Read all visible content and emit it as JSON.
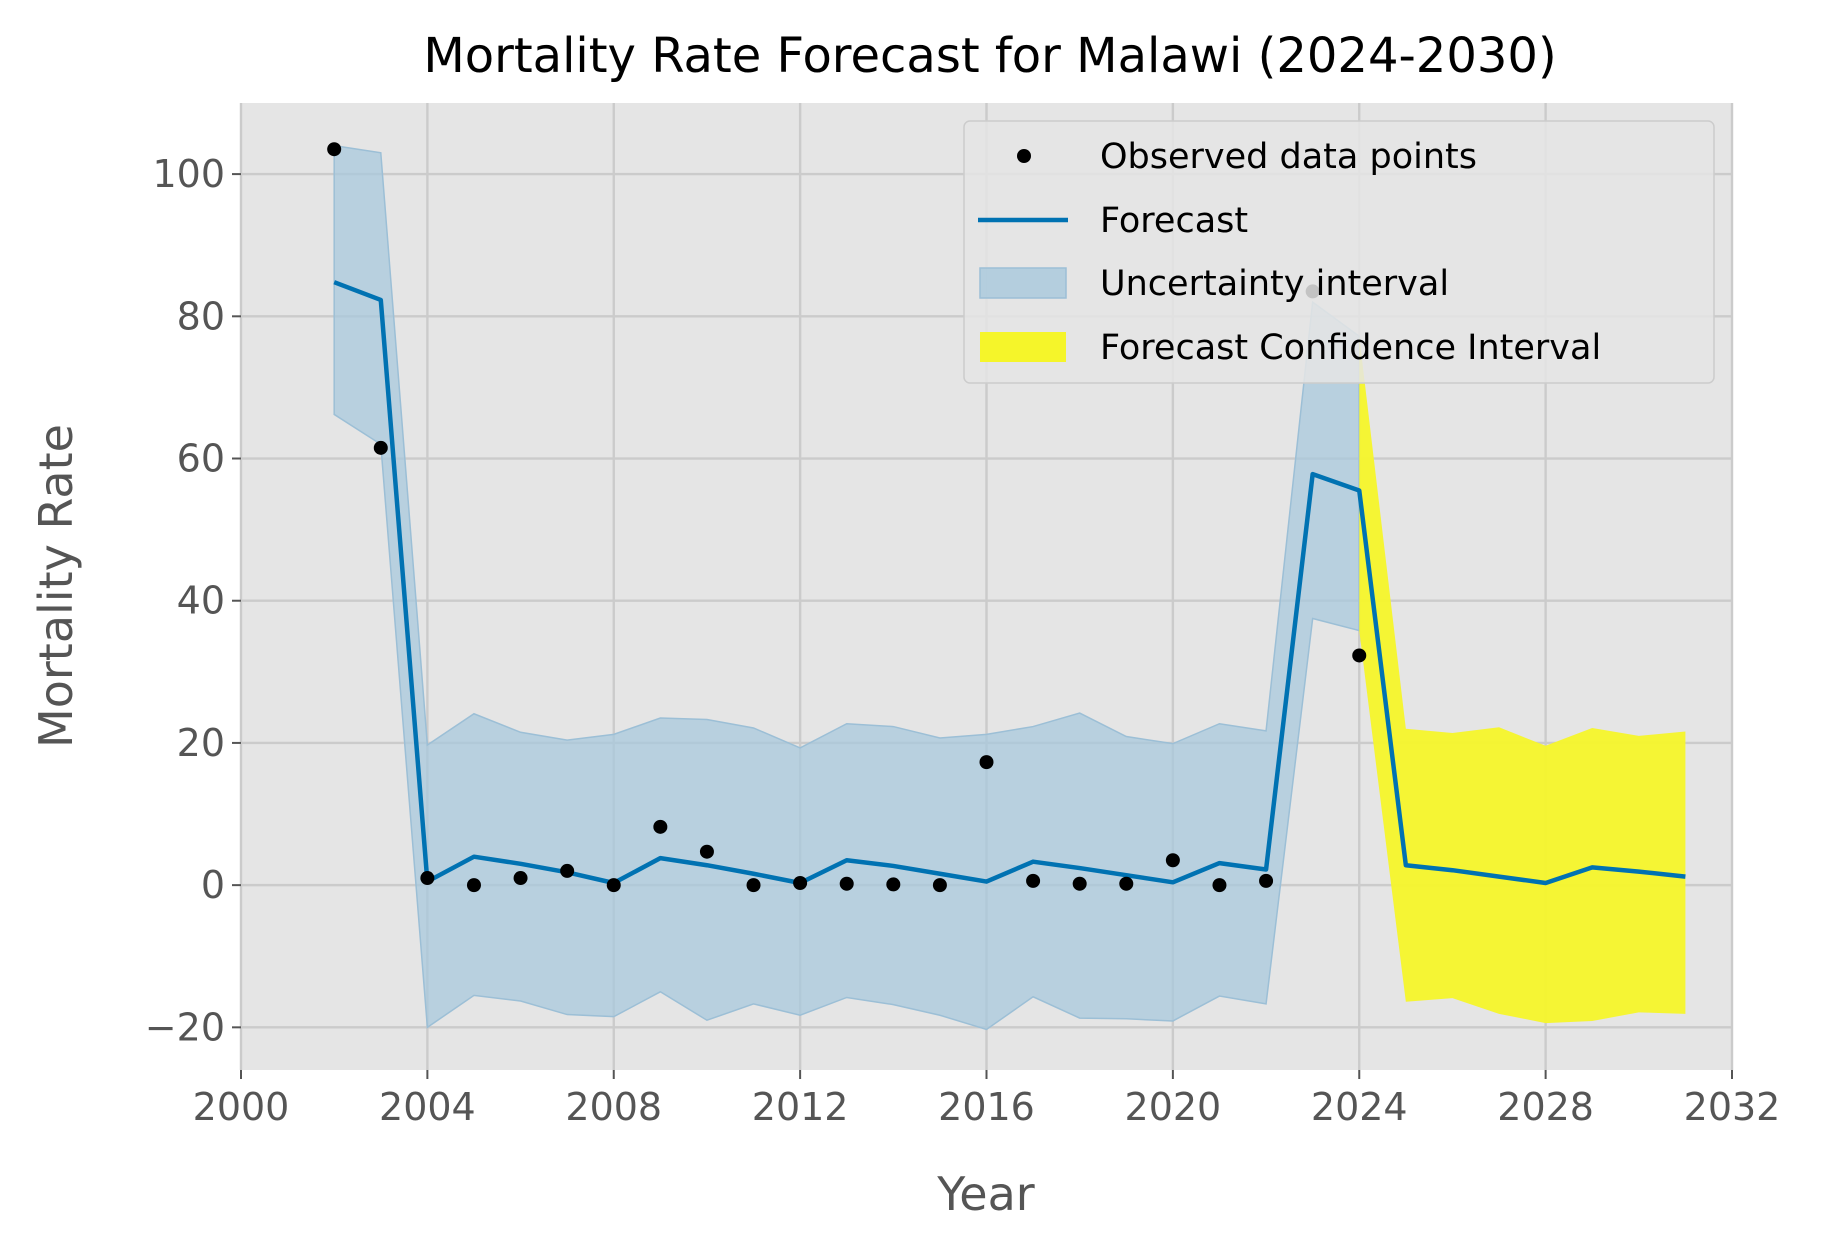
{
  "chart_data": {
    "type": "line",
    "title": "Mortality Rate Forecast for Malawi (2024-2030)",
    "xlabel": "Year",
    "ylabel": "Mortality Rate",
    "xlim": [
      2000,
      2032
    ],
    "ylim": [
      -26,
      110
    ],
    "grid": true,
    "legend_position": "top-right",
    "x_ticks": [
      2000,
      2004,
      2008,
      2012,
      2016,
      2020,
      2024,
      2028,
      2032
    ],
    "x_tick_labels": [
      "2000",
      "2004",
      "2008",
      "2012",
      "2016",
      "2020",
      "2024",
      "2028",
      "2032"
    ],
    "y_ticks": [
      -20,
      0,
      20,
      40,
      60,
      80,
      100
    ],
    "y_tick_labels": [
      "−20",
      "0",
      "20",
      "40",
      "60",
      "80",
      "100"
    ],
    "colors": {
      "plot_background": "#e5e5e5",
      "grid": "#cbcbcb",
      "forecast_line": "#0072b2",
      "uncertainty_fill": "#a8c8dc",
      "confidence_fill": "#f5f52a",
      "observed": "#000000"
    },
    "legend": [
      {
        "key": "observed",
        "label": "Observed data points"
      },
      {
        "key": "forecast",
        "label": "Forecast"
      },
      {
        "key": "uncertainty",
        "label": "Uncertainty interval"
      },
      {
        "key": "confidence",
        "label": "Forecast Confidence Interval"
      }
    ],
    "observed": {
      "x": [
        2002,
        2003,
        2004,
        2005,
        2006,
        2007,
        2008,
        2009,
        2010,
        2011,
        2012,
        2013,
        2014,
        2015,
        2016,
        2017,
        2018,
        2019,
        2020,
        2021,
        2022,
        2023,
        2024
      ],
      "y": [
        103.5,
        61.5,
        1.0,
        0.0,
        1.0,
        2.0,
        0.0,
        8.2,
        4.7,
        0.0,
        0.3,
        0.2,
        0.1,
        0.0,
        17.3,
        0.6,
        0.2,
        0.2,
        3.5,
        0.0,
        0.6,
        83.5,
        32.3
      ]
    },
    "forecast": {
      "x": [
        2002,
        2003,
        2004,
        2005,
        2006,
        2007,
        2008,
        2009,
        2010,
        2011,
        2012,
        2013,
        2014,
        2015,
        2016,
        2017,
        2018,
        2019,
        2020,
        2021,
        2022,
        2023,
        2024,
        2025,
        2026,
        2027,
        2028,
        2029,
        2030,
        2031
      ],
      "y": [
        84.8,
        82.3,
        0.5,
        4.0,
        3.0,
        1.8,
        0.3,
        3.8,
        2.8,
        1.6,
        0.3,
        3.5,
        2.7,
        1.6,
        0.5,
        3.3,
        2.4,
        1.4,
        0.4,
        3.1,
        2.2,
        57.8,
        55.5,
        2.8,
        2.1,
        1.2,
        0.3,
        2.5,
        1.9,
        1.2
      ]
    },
    "uncertainty_interval": {
      "x": [
        2002,
        2003,
        2004,
        2005,
        2006,
        2007,
        2008,
        2009,
        2010,
        2011,
        2012,
        2013,
        2014,
        2015,
        2016,
        2017,
        2018,
        2019,
        2020,
        2021,
        2022,
        2023,
        2024
      ],
      "lower": [
        66.2,
        62.0,
        -20.0,
        -15.5,
        -16.3,
        -18.2,
        -18.5,
        -15.0,
        -19.0,
        -16.7,
        -18.3,
        -15.8,
        -16.8,
        -18.3,
        -20.3,
        -15.7,
        -18.7,
        -18.8,
        -19.1,
        -15.6,
        -16.7,
        37.5,
        35.8
      ],
      "upper": [
        104.0,
        103.0,
        19.7,
        24.1,
        21.5,
        20.4,
        21.2,
        23.5,
        23.3,
        22.1,
        19.3,
        22.7,
        22.3,
        20.7,
        21.2,
        22.3,
        24.2,
        20.9,
        19.9,
        22.7,
        21.7,
        82.0,
        77.2
      ]
    },
    "forecast_confidence_interval": {
      "x": [
        2024,
        2025,
        2026,
        2027,
        2028,
        2029,
        2030,
        2031
      ],
      "lower": [
        35.8,
        -16.4,
        -15.9,
        -18.1,
        -19.4,
        -19.1,
        -17.9,
        -18.1
      ],
      "upper": [
        77.2,
        22.0,
        21.4,
        22.2,
        19.6,
        22.1,
        21.0,
        21.6
      ]
    }
  }
}
